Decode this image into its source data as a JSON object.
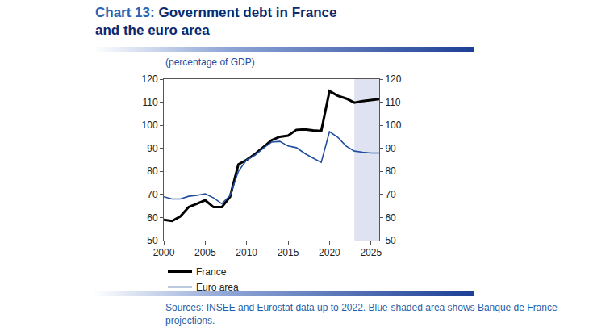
{
  "chart_data": {
    "type": "line",
    "title": "Chart 13: Government debt in France and the euro area",
    "subtitle": "(percentage of GDP)",
    "note": "Sources: INSEE and Eurostat data up to 2022. Blue-shaded area shows Banque de France projections.",
    "x": [
      2000,
      2001,
      2002,
      2003,
      2004,
      2005,
      2006,
      2007,
      2008,
      2009,
      2010,
      2011,
      2012,
      2013,
      2014,
      2015,
      2016,
      2017,
      2018,
      2019,
      2020,
      2021,
      2022,
      2023,
      2024,
      2025,
      2026
    ],
    "series": [
      {
        "name": "France",
        "color": "#000000",
        "values": [
          59,
          58.5,
          60.5,
          64.5,
          66,
          67.5,
          64.5,
          64.5,
          69,
          83,
          85,
          87.5,
          90.5,
          93.5,
          95,
          95.5,
          98,
          98.2,
          97.8,
          97.5,
          114.8,
          112.8,
          111.6,
          109.8,
          110.5,
          111,
          111.3
        ]
      },
      {
        "name": "Euro area",
        "color": "#1f4e9c",
        "values": [
          69,
          68,
          68,
          69.2,
          69.6,
          70.3,
          68.5,
          66,
          69.5,
          80,
          85,
          87,
          90,
          92.7,
          93,
          91,
          90.3,
          87.8,
          85.8,
          83.9,
          97.2,
          94.8,
          91,
          88.8,
          88.3,
          88,
          88
        ]
      }
    ],
    "xlim": [
      2000,
      2026
    ],
    "xticks": [
      2000,
      2005,
      2010,
      2015,
      2020,
      2025
    ],
    "ylim": [
      50,
      120
    ],
    "yticks": [
      50,
      60,
      70,
      80,
      90,
      100,
      110,
      120
    ],
    "y2lim": [
      50,
      120
    ],
    "y2ticks": [
      50,
      60,
      70,
      80,
      90,
      100,
      110,
      120
    ],
    "shaded_x": [
      2023,
      2026
    ],
    "grid": false,
    "legend": "bottom left"
  }
}
